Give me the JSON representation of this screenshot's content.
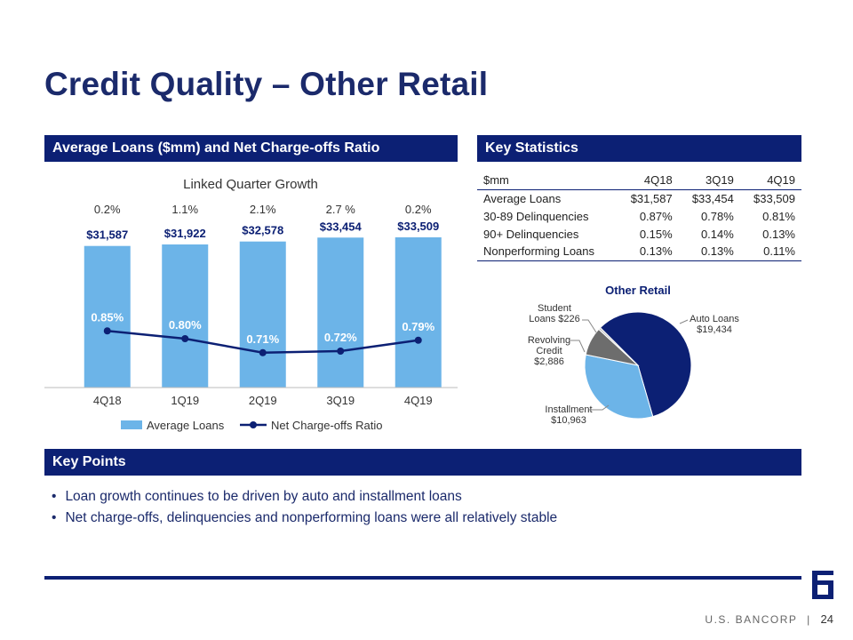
{
  "slide": {
    "title": "Credit Quality – Other Retail",
    "footer_brand": "U.S. BANCORP",
    "footer_sep": "|",
    "page_number": "24"
  },
  "sections": {
    "loans_header": "Average Loans ($mm) and Net Charge-offs Ratio",
    "stats_header": "Key Statistics",
    "points_header": "Key Points"
  },
  "key_statistics": {
    "columns": [
      "$mm",
      "4Q18",
      "3Q19",
      "4Q19"
    ],
    "rows": [
      [
        "Average Loans",
        "$31,587",
        "$33,454",
        "$33,509"
      ],
      [
        "30-89 Delinquencies",
        "0.87%",
        "0.78%",
        "0.81%"
      ],
      [
        "90+ Delinquencies",
        "0.15%",
        "0.14%",
        "0.13%"
      ],
      [
        "Nonperforming Loans",
        "0.13%",
        "0.13%",
        "0.11%"
      ]
    ]
  },
  "key_points": [
    "Loan growth continues to be driven by auto and installment loans",
    "Net charge-offs, delinquencies and nonperforming loans were all relatively stable"
  ],
  "colors": {
    "navy": "#0c2074",
    "bar_blue": "#6cb4e8",
    "pie_auto": "#0c2074",
    "pie_installment": "#6cb4e8",
    "pie_revolving": "#6d6d6d",
    "pie_student": "#c8c8c8"
  },
  "chart_data": [
    {
      "type": "bar",
      "title": "Linked Quarter Growth",
      "categories": [
        "4Q18",
        "1Q19",
        "2Q19",
        "3Q19",
        "4Q19"
      ],
      "growth_labels": [
        "0.2%",
        "1.1%",
        "2.1%",
        "2.7 %",
        "0.2%"
      ],
      "series": [
        {
          "name": "Average Loans",
          "kind": "bar",
          "values": [
            31587,
            31922,
            32578,
            33454,
            33509
          ],
          "labels": [
            "$31,587",
            "$31,922",
            "$32,578",
            "$33,454",
            "$33,509"
          ],
          "color": "#6cb4e8"
        },
        {
          "name": "Net Charge-offs Ratio",
          "kind": "line",
          "values": [
            0.85,
            0.8,
            0.71,
            0.72,
            0.79
          ],
          "labels": [
            "0.85%",
            "0.80%",
            "0.71%",
            "0.72%",
            "0.79%"
          ],
          "color": "#0c2074"
        }
      ],
      "legend": "bottom"
    },
    {
      "type": "pie",
      "title": "Other Retail",
      "slices": [
        {
          "label": "Auto Loans",
          "value": 19434,
          "value_label": "$19,434",
          "color": "#0c2074"
        },
        {
          "label": "Installment",
          "value": 10963,
          "value_label": "$10,963",
          "color": "#6cb4e8"
        },
        {
          "label": "Revolving Credit",
          "value": 2886,
          "value_label": "$2,886",
          "color": "#6d6d6d"
        },
        {
          "label": "Student Loans",
          "value": 226,
          "value_label": "$226",
          "color": "#c8c8c8"
        }
      ]
    }
  ]
}
